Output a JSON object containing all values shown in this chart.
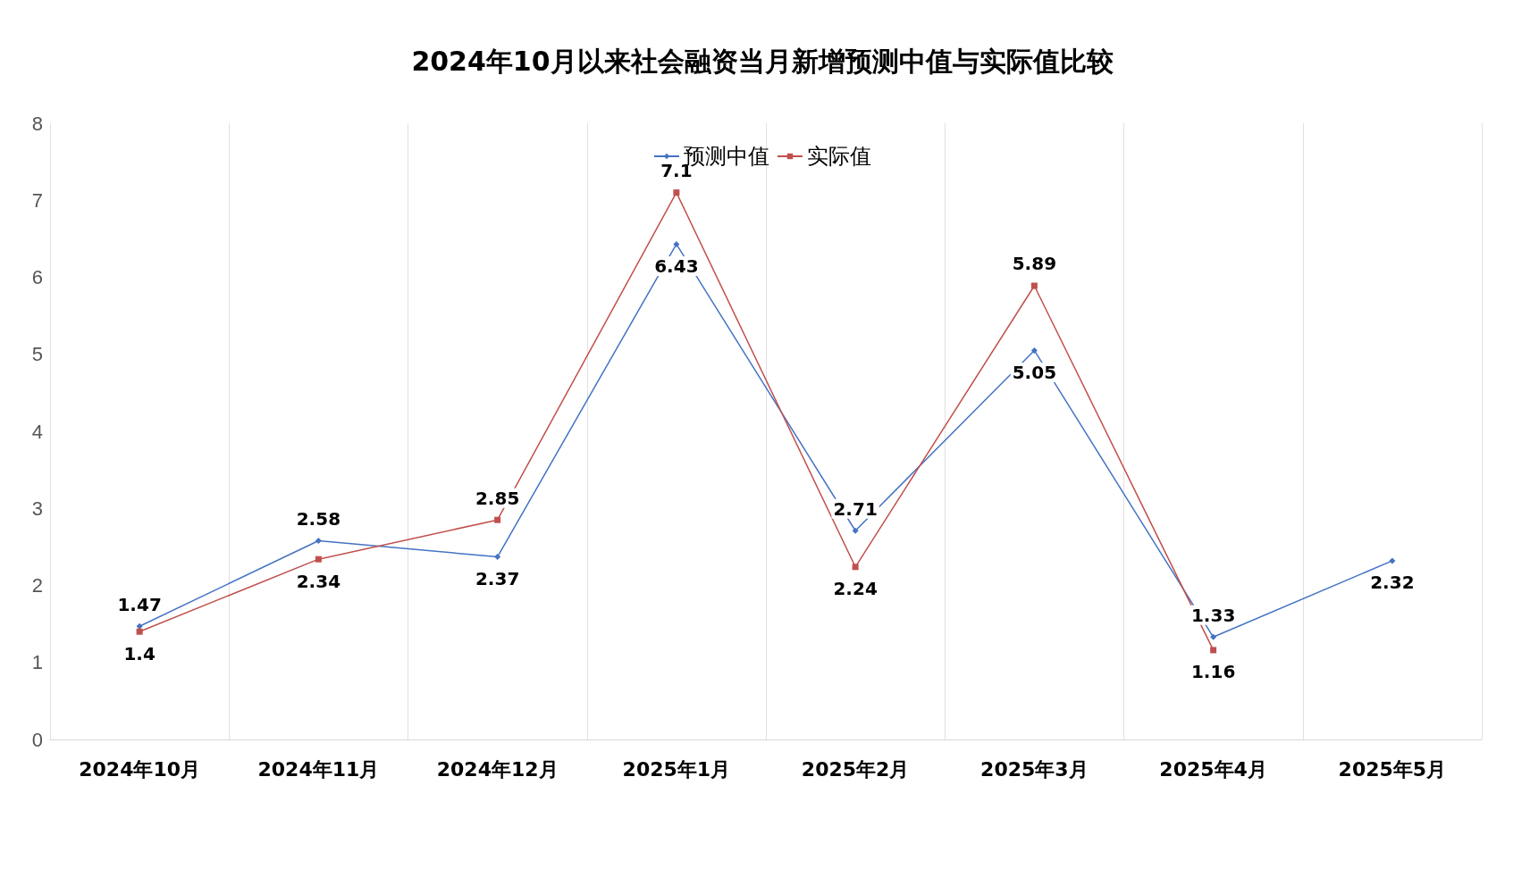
{
  "chart_data": {
    "type": "line",
    "title": "2024年10月以来社会融资当月新增预测中值与实际值比较",
    "categories": [
      "2024年10月",
      "2024年11月",
      "2024年12月",
      "2025年1月",
      "2025年2月",
      "2025年3月",
      "2025年4月",
      "2025年5月"
    ],
    "series": [
      {
        "name": "预测中值",
        "color": "#4472c4",
        "marker": "diamond",
        "values": [
          1.47,
          2.58,
          2.37,
          6.43,
          2.71,
          5.05,
          1.33,
          2.32
        ]
      },
      {
        "name": "实际值",
        "color": "#c0504d",
        "marker": "square",
        "values": [
          1.4,
          2.34,
          2.85,
          7.1,
          2.24,
          5.89,
          1.16,
          null
        ]
      }
    ],
    "ylim": [
      0,
      8
    ],
    "yticks": [
      0,
      1,
      2,
      3,
      4,
      5,
      6,
      7,
      8
    ],
    "grid": "x",
    "legend": "top",
    "data_labels": true,
    "line_style": "solid"
  }
}
